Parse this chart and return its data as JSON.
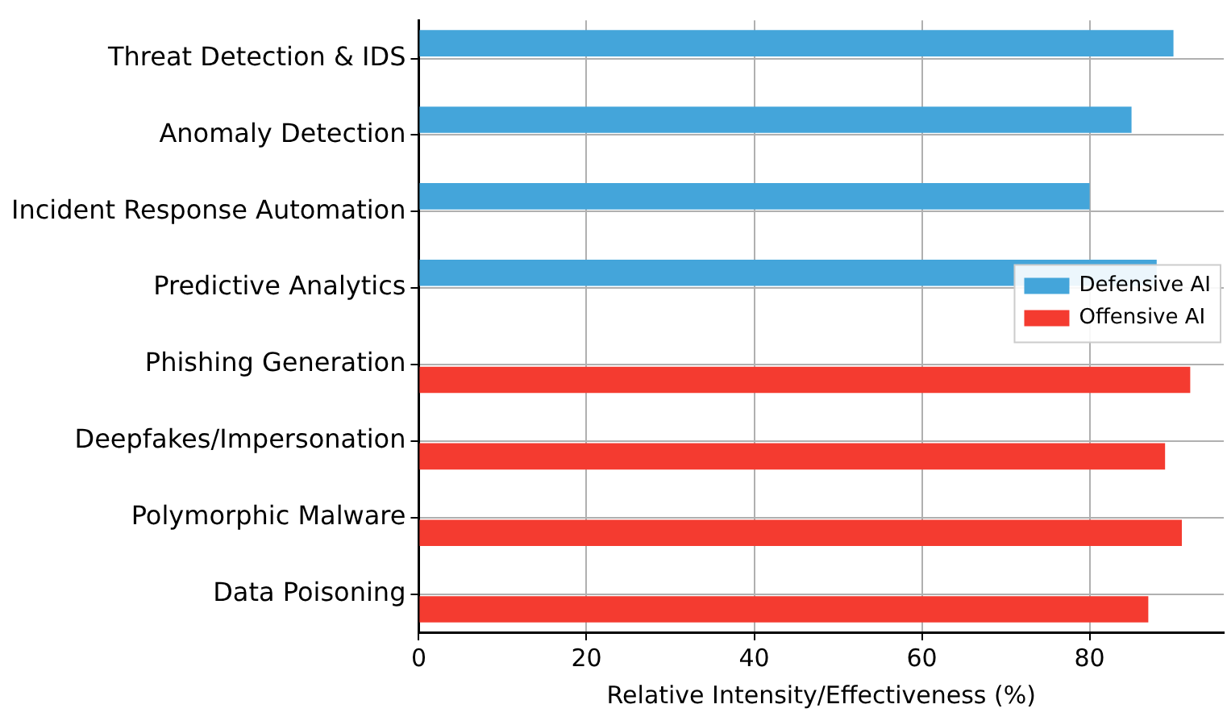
{
  "chart_data": {
    "type": "bar",
    "orientation": "horizontal",
    "xlabel": "Relative Intensity/Effectiveness (%)",
    "categories": [
      "Threat Detection & IDS",
      "Anomaly Detection",
      "Incident Response Automation",
      "Predictive Analytics",
      "Phishing Generation",
      "Deepfakes/Impersonation",
      "Polymorphic Malware",
      "Data Poisoning"
    ],
    "series": [
      {
        "name": "Defensive AI",
        "color": "#44a5da",
        "values": [
          90,
          85,
          80,
          88,
          null,
          null,
          null,
          null
        ]
      },
      {
        "name": "Offensive AI",
        "color": "#f43b30",
        "values": [
          null,
          null,
          null,
          null,
          92,
          89,
          91,
          87
        ]
      }
    ],
    "xlim": [
      0,
      96
    ],
    "xticks": [
      0,
      20,
      40,
      60,
      80
    ],
    "grid": true,
    "legend": "center right"
  }
}
